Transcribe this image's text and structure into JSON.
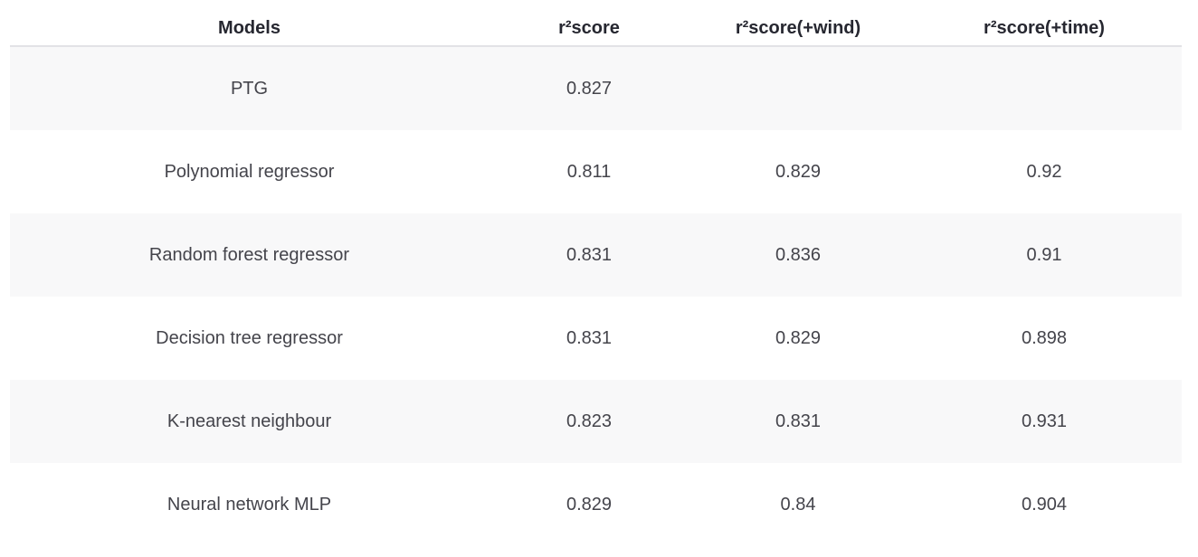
{
  "chart_data": {
    "type": "table",
    "title": "",
    "columns": [
      "Models",
      "r²score",
      "r²score(+wind)",
      "r²score(+time)"
    ],
    "rows": [
      [
        "PTG",
        "0.827",
        "",
        ""
      ],
      [
        "Polynomial regressor",
        "0.811",
        "0.829",
        "0.92"
      ],
      [
        "Random forest regressor",
        "0.831",
        "0.836",
        "0.91"
      ],
      [
        "Decision tree regressor",
        "0.831",
        "0.829",
        "0.898"
      ],
      [
        "K-nearest neighbour",
        "0.823",
        "0.831",
        "0.931"
      ],
      [
        "Neural network MLP",
        "0.829",
        "0.84",
        "0.904"
      ]
    ],
    "layout": {
      "striped_rows": "odd",
      "text_align": "center",
      "header_rule": true,
      "cell_borders": false
    }
  },
  "colors": {
    "header_text": "#262730",
    "body_text": "#44444b",
    "stripe_background": "#f8f8f9",
    "row_background": "#ffffff",
    "header_border": "#e2e2e6"
  }
}
